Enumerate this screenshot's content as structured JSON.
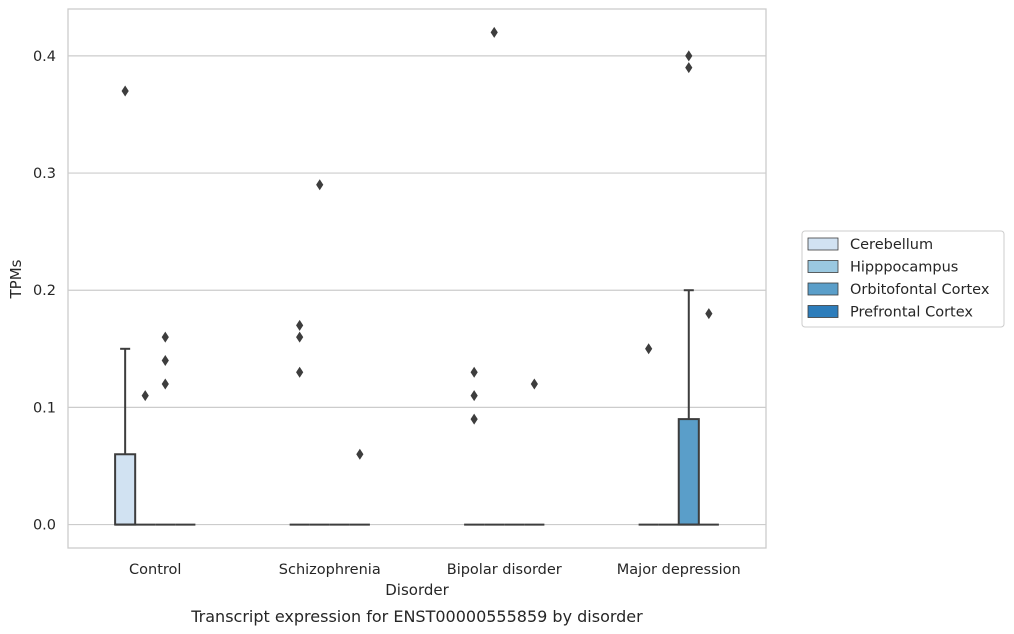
{
  "chart_data": {
    "type": "box",
    "caption": "Transcript expression for ENST00000555859 by disorder",
    "xlabel": "Disorder",
    "ylabel": "TPMs",
    "ylim": [
      -0.02,
      0.44
    ],
    "yticks": [
      0.0,
      0.1,
      0.2,
      0.3,
      0.4
    ],
    "ytick_labels": [
      "0.0",
      "0.1",
      "0.2",
      "0.3",
      "0.4"
    ],
    "grid": "horizontal",
    "legend_position": "right",
    "categories": [
      "Control",
      "Schizophrenia",
      "Bipolar disorder",
      "Major depression"
    ],
    "series": [
      {
        "name": "Cerebellum",
        "color": "#d1e2f2",
        "boxes": [
          {
            "q1": 0.0,
            "median": 0.0,
            "q3": 0.06,
            "whisker_low": 0.0,
            "whisker_high": 0.15,
            "outliers": [
              0.37
            ]
          },
          {
            "q1": 0.0,
            "median": 0.0,
            "q3": 0.0,
            "whisker_low": 0.0,
            "whisker_high": 0.0,
            "outliers": [
              0.13,
              0.16,
              0.17
            ]
          },
          {
            "q1": 0.0,
            "median": 0.0,
            "q3": 0.0,
            "whisker_low": 0.0,
            "whisker_high": 0.0,
            "outliers": [
              0.09,
              0.11,
              0.13
            ]
          },
          {
            "q1": 0.0,
            "median": 0.0,
            "q3": 0.0,
            "whisker_low": 0.0,
            "whisker_high": 0.0,
            "outliers": [
              0.15
            ]
          }
        ]
      },
      {
        "name": "Hipppocampus",
        "color": "#9ac8e0",
        "boxes": [
          {
            "q1": 0.0,
            "median": 0.0,
            "q3": 0.0,
            "whisker_low": 0.0,
            "whisker_high": 0.0,
            "outliers": [
              0.11
            ]
          },
          {
            "q1": 0.0,
            "median": 0.0,
            "q3": 0.0,
            "whisker_low": 0.0,
            "whisker_high": 0.0,
            "outliers": [
              0.29
            ]
          },
          {
            "q1": 0.0,
            "median": 0.0,
            "q3": 0.0,
            "whisker_low": 0.0,
            "whisker_high": 0.0,
            "outliers": [
              0.42
            ]
          },
          {
            "q1": 0.0,
            "median": 0.0,
            "q3": 0.0,
            "whisker_low": 0.0,
            "whisker_high": 0.0,
            "outliers": []
          }
        ]
      },
      {
        "name": "Orbitofontal Cortex",
        "color": "#5a9ec9",
        "boxes": [
          {
            "q1": 0.0,
            "median": 0.0,
            "q3": 0.0,
            "whisker_low": 0.0,
            "whisker_high": 0.0,
            "outliers": [
              0.12,
              0.14,
              0.16
            ]
          },
          {
            "q1": 0.0,
            "median": 0.0,
            "q3": 0.0,
            "whisker_low": 0.0,
            "whisker_high": 0.0,
            "outliers": []
          },
          {
            "q1": 0.0,
            "median": 0.0,
            "q3": 0.0,
            "whisker_low": 0.0,
            "whisker_high": 0.0,
            "outliers": []
          },
          {
            "q1": 0.0,
            "median": 0.0,
            "q3": 0.09,
            "whisker_low": 0.0,
            "whisker_high": 0.2,
            "outliers": [
              0.39,
              0.4
            ]
          }
        ]
      },
      {
        "name": "Prefrontal Cortex",
        "color": "#2d7dbb",
        "boxes": [
          {
            "q1": 0.0,
            "median": 0.0,
            "q3": 0.0,
            "whisker_low": 0.0,
            "whisker_high": 0.0,
            "outliers": []
          },
          {
            "q1": 0.0,
            "median": 0.0,
            "q3": 0.0,
            "whisker_low": 0.0,
            "whisker_high": 0.0,
            "outliers": [
              0.06
            ]
          },
          {
            "q1": 0.0,
            "median": 0.0,
            "q3": 0.0,
            "whisker_low": 0.0,
            "whisker_high": 0.0,
            "outliers": [
              0.12
            ]
          },
          {
            "q1": 0.0,
            "median": 0.0,
            "q3": 0.0,
            "whisker_low": 0.0,
            "whisker_high": 0.0,
            "outliers": [
              0.18
            ]
          }
        ]
      }
    ]
  }
}
